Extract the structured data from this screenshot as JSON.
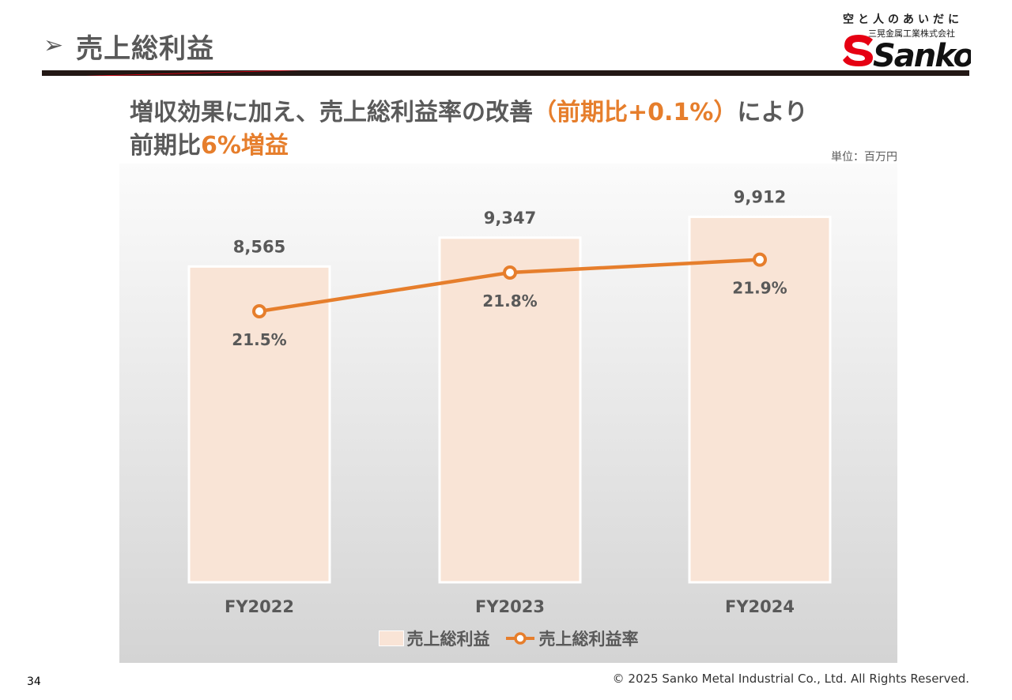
{
  "slide": {
    "title": "売上総利益",
    "title_arrow": "➢",
    "page_number": "34",
    "copyright": "© 2025 Sanko Metal Industrial Co., Ltd. All Rights Reserved."
  },
  "logo": {
    "tagline": "空と人のあいだに",
    "company": "三晃金属工業株式会社",
    "wordmark": "Sanko"
  },
  "headline": {
    "line1_pre": "増収効果に加え、売上総利益率の改善",
    "line1_highlight": "（前期比+0.1%）",
    "line1_post": "により",
    "line2_pre": "前期比",
    "line2_highlight": "6%増益"
  },
  "unit_label": "単位：百万円",
  "colors": {
    "accent_orange": "#e67e2c",
    "bar_fill": "#f9e4d6",
    "text_gray": "#595959",
    "rule_dark": "#231815",
    "rule_red": "#e60012"
  },
  "chart_data": {
    "type": "bar",
    "categories": [
      "FY2022",
      "FY2023",
      "FY2024"
    ],
    "series": [
      {
        "name": "売上総利益",
        "type": "bar",
        "values": [
          8565,
          9347,
          9912
        ],
        "labels": [
          "8,565",
          "9,347",
          "9,912"
        ]
      },
      {
        "name": "売上総利益率",
        "type": "line",
        "values": [
          21.5,
          21.8,
          21.9
        ],
        "labels": [
          "21.5%",
          "21.8%",
          "21.9%"
        ]
      }
    ],
    "bar_axis_max": 10500,
    "line_axis_range": [
      19.4,
      22.4
    ],
    "legend_position": "bottom",
    "grid": false
  }
}
